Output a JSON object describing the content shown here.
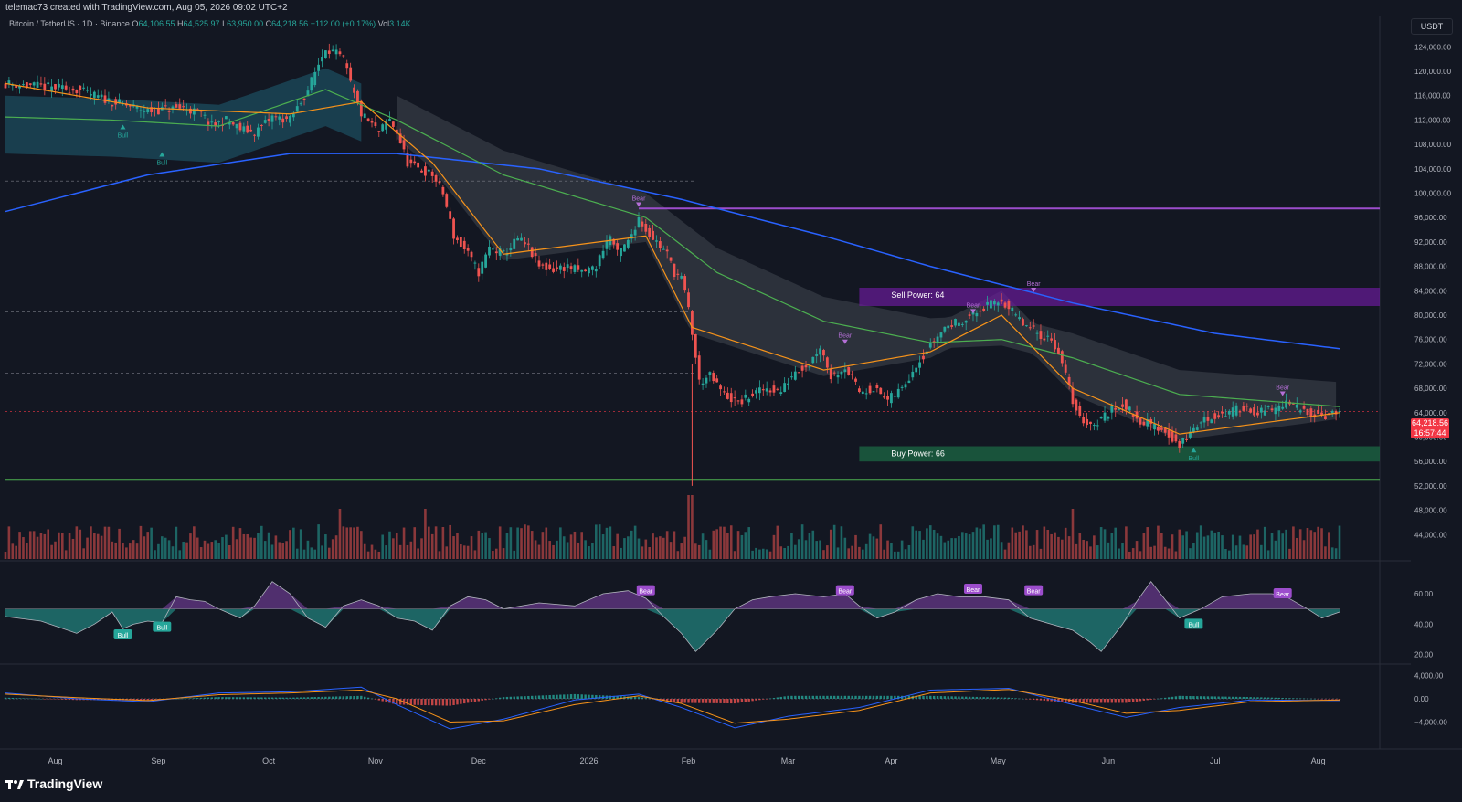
{
  "header": {
    "attribution": "telemac73 created with TradingView.com, Aug 05, 2026 09:02 UTC+2",
    "symbol": "Bitcoin / TetherUS · 1D · Binance",
    "open_label": "O",
    "open": "64,106.55",
    "high_label": "H",
    "high": "64,525.97",
    "low_label": "L",
    "low": "63,950.00",
    "close_label": "C",
    "close": "64,218.56",
    "change": "+112.00 (+0.17%)",
    "vol_label": "Vol",
    "volume": "3.14K"
  },
  "currency_button": "USDT",
  "price_tag": {
    "price": "64,218.56",
    "countdown": "16:57:44"
  },
  "branding": "TradingView",
  "colors": {
    "bg": "#131722",
    "bull": "#26a69a",
    "bear": "#ef5350",
    "ema_fast": "#f7931a",
    "ma_green": "#4caf50",
    "ma_blue": "#2962ff",
    "purple": "#9c27b0",
    "cloud": "#5d606b",
    "teal_cloud": "#1f5f73",
    "buy_zone": "#1b5e3f",
    "sell_zone": "#6a1b9a"
  },
  "chart_data": [
    {
      "type": "line",
      "name": "price_panel",
      "ylim": [
        40000,
        126000
      ],
      "y_ticks": [
        "124,000.00",
        "120,000.00",
        "116,000.00",
        "112,000.00",
        "108,000.00",
        "104,000.00",
        "100,000.00",
        "96,000.00",
        "92,000.00",
        "88,000.00",
        "84,000.00",
        "80,000.00",
        "76,000.00",
        "72,000.00",
        "68,000.00",
        "64,000.00",
        "60,000.00",
        "56,000.00",
        "52,000.00",
        "48,000.00",
        "44,000.00"
      ],
      "x_ticks": [
        "Aug",
        "Sep",
        "Oct",
        "Nov",
        "Dec",
        "2026",
        "Feb",
        "Mar",
        "Apr",
        "May",
        "Jun",
        "Jul",
        "Aug"
      ],
      "price_path": [
        [
          0,
          118000
        ],
        [
          10,
          117500
        ],
        [
          20,
          117000
        ],
        [
          30,
          115000
        ],
        [
          40,
          113500
        ],
        [
          50,
          114000
        ],
        [
          55,
          113000
        ],
        [
          58,
          111000
        ],
        [
          62,
          112000
        ],
        [
          66,
          110500
        ],
        [
          70,
          110000
        ],
        [
          75,
          112500
        ],
        [
          80,
          112000
        ],
        [
          85,
          117000
        ],
        [
          90,
          124000
        ],
        [
          95,
          122000
        ],
        [
          98,
          116000
        ],
        [
          100,
          113000
        ],
        [
          105,
          110000
        ],
        [
          108,
          112000
        ],
        [
          110,
          110000
        ],
        [
          113,
          105000
        ],
        [
          116,
          104000
        ],
        [
          120,
          103000
        ],
        [
          123,
          100000
        ],
        [
          126,
          93000
        ],
        [
          130,
          90000
        ],
        [
          133,
          87000
        ],
        [
          136,
          91000
        ],
        [
          140,
          90000
        ],
        [
          144,
          92500
        ],
        [
          147,
          91000
        ],
        [
          150,
          88000
        ],
        [
          154,
          87500
        ],
        [
          158,
          88000
        ],
        [
          162,
          87000
        ],
        [
          166,
          88000
        ],
        [
          168,
          91000
        ],
        [
          170,
          93000
        ],
        [
          172,
          90000
        ],
        [
          175,
          92000
        ],
        [
          178,
          96000
        ],
        [
          180,
          94000
        ],
        [
          183,
          92000
        ],
        [
          186,
          90000
        ],
        [
          188,
          87000
        ],
        [
          190,
          86000
        ],
        [
          192,
          81000
        ],
        [
          193,
          77000
        ],
        [
          195,
          69000
        ],
        [
          198,
          70000
        ],
        [
          202,
          67000
        ],
        [
          206,
          65500
        ],
        [
          210,
          67000
        ],
        [
          214,
          68000
        ],
        [
          218,
          67500
        ],
        [
          222,
          71000
        ],
        [
          226,
          72000
        ],
        [
          229,
          75000
        ],
        [
          232,
          70000
        ],
        [
          236,
          71500
        ],
        [
          240,
          67500
        ],
        [
          244,
          68000
        ],
        [
          248,
          66000
        ],
        [
          252,
          68000
        ],
        [
          256,
          72000
        ],
        [
          260,
          75000
        ],
        [
          264,
          78000
        ],
        [
          268,
          79000
        ],
        [
          272,
          80000
        ],
        [
          276,
          81500
        ],
        [
          280,
          82500
        ],
        [
          283,
          80500
        ],
        [
          286,
          78500
        ],
        [
          290,
          77000
        ],
        [
          294,
          76000
        ],
        [
          296,
          74000
        ],
        [
          298,
          70000
        ],
        [
          300,
          66000
        ],
        [
          302,
          63000
        ],
        [
          306,
          62000
        ],
        [
          310,
          64000
        ],
        [
          314,
          65500
        ],
        [
          318,
          63000
        ],
        [
          322,
          62000
        ],
        [
          326,
          61000
        ],
        [
          330,
          58500
        ],
        [
          332,
          60000
        ],
        [
          336,
          62500
        ],
        [
          340,
          63500
        ],
        [
          344,
          64000
        ],
        [
          348,
          65000
        ],
        [
          352,
          64000
        ],
        [
          356,
          64500
        ],
        [
          360,
          65500
        ],
        [
          364,
          64500
        ],
        [
          368,
          64000
        ],
        [
          372,
          63500
        ],
        [
          375,
          64218.56
        ]
      ],
      "ema_20_path": [
        [
          0,
          118000
        ],
        [
          40,
          114000
        ],
        [
          80,
          113000
        ],
        [
          100,
          115000
        ],
        [
          120,
          105000
        ],
        [
          140,
          90000
        ],
        [
          180,
          93000
        ],
        [
          193,
          78000
        ],
        [
          230,
          71000
        ],
        [
          260,
          74000
        ],
        [
          280,
          80000
        ],
        [
          300,
          68000
        ],
        [
          330,
          60500
        ],
        [
          375,
          64000
        ]
      ],
      "ma_50_path": [
        [
          0,
          112500
        ],
        [
          30,
          112000
        ],
        [
          60,
          111000
        ],
        [
          90,
          117000
        ],
        [
          110,
          112000
        ],
        [
          140,
          103000
        ],
        [
          180,
          96000
        ],
        [
          200,
          87000
        ],
        [
          230,
          79000
        ],
        [
          260,
          75500
        ],
        [
          280,
          76000
        ],
        [
          300,
          73000
        ],
        [
          330,
          67000
        ],
        [
          375,
          65000
        ]
      ],
      "ma_200_path": [
        [
          0,
          97000
        ],
        [
          40,
          103000
        ],
        [
          80,
          106500
        ],
        [
          110,
          106500
        ],
        [
          150,
          104000
        ],
        [
          190,
          99000
        ],
        [
          230,
          93000
        ],
        [
          260,
          88000
        ],
        [
          300,
          82000
        ],
        [
          340,
          77000
        ],
        [
          375,
          74500
        ]
      ],
      "resistance_line": 97500,
      "sell_zone": {
        "label": "Sell Power: 64",
        "top": 84500,
        "bottom": 81500
      },
      "buy_zone": {
        "label": "Buy Power: 66",
        "top": 58500,
        "bottom": 56000
      },
      "support_line": 53000,
      "dashed_levels": [
        102000,
        80500,
        70500
      ],
      "current_level": 64218.56,
      "annotations": [
        {
          "text": "Bull",
          "x": 33,
          "y": 110500
        },
        {
          "text": "Bull",
          "x": 44,
          "y": 106000
        },
        {
          "text": "Bear",
          "x": 178,
          "y": 98500
        },
        {
          "text": "Bear",
          "x": 236,
          "y": 76000
        },
        {
          "text": "Bear",
          "x": 272,
          "y": 81000
        },
        {
          "text": "Bear",
          "x": 289,
          "y": 84500
        },
        {
          "text": "Bear",
          "x": 359,
          "y": 67500
        },
        {
          "text": "Bull",
          "x": 334,
          "y": 57500
        }
      ]
    },
    {
      "type": "area",
      "name": "rsi_panel",
      "ylim": [
        15,
        75
      ],
      "y_ticks": [
        "60.00",
        "40.00",
        "20.00"
      ],
      "baseline": 50,
      "values": [
        [
          0,
          45
        ],
        [
          10,
          42
        ],
        [
          15,
          38
        ],
        [
          20,
          34
        ],
        [
          25,
          40
        ],
        [
          30,
          48
        ],
        [
          33,
          37
        ],
        [
          36,
          40
        ],
        [
          40,
          42
        ],
        [
          44,
          41
        ],
        [
          48,
          58
        ],
        [
          52,
          56
        ],
        [
          56,
          55
        ],
        [
          60,
          50
        ],
        [
          66,
          44
        ],
        [
          70,
          52
        ],
        [
          75,
          68
        ],
        [
          80,
          60
        ],
        [
          85,
          44
        ],
        [
          90,
          38
        ],
        [
          95,
          52
        ],
        [
          100,
          56
        ],
        [
          105,
          52
        ],
        [
          110,
          44
        ],
        [
          115,
          42
        ],
        [
          120,
          36
        ],
        [
          125,
          52
        ],
        [
          130,
          58
        ],
        [
          135,
          56
        ],
        [
          140,
          50
        ],
        [
          150,
          54
        ],
        [
          160,
          52
        ],
        [
          168,
          60
        ],
        [
          175,
          62
        ],
        [
          180,
          57
        ],
        [
          185,
          45
        ],
        [
          190,
          34
        ],
        [
          194,
          22
        ],
        [
          200,
          36
        ],
        [
          205,
          50
        ],
        [
          210,
          56
        ],
        [
          215,
          58
        ],
        [
          222,
          60
        ],
        [
          230,
          58
        ],
        [
          236,
          60
        ],
        [
          240,
          52
        ],
        [
          245,
          44
        ],
        [
          250,
          48
        ],
        [
          256,
          56
        ],
        [
          262,
          60
        ],
        [
          268,
          58
        ],
        [
          275,
          58
        ],
        [
          282,
          56
        ],
        [
          288,
          44
        ],
        [
          294,
          40
        ],
        [
          300,
          36
        ],
        [
          305,
          28
        ],
        [
          308,
          22
        ],
        [
          314,
          40
        ],
        [
          318,
          55
        ],
        [
          322,
          68
        ],
        [
          326,
          56
        ],
        [
          330,
          44
        ],
        [
          336,
          50
        ],
        [
          342,
          58
        ],
        [
          350,
          60
        ],
        [
          356,
          60
        ],
        [
          360,
          58
        ],
        [
          366,
          50
        ],
        [
          370,
          44
        ],
        [
          375,
          48
        ]
      ],
      "labels": [
        {
          "text": "Bull",
          "x": 33,
          "y": 33
        },
        {
          "text": "Bull",
          "x": 44,
          "y": 38
        },
        {
          "text": "Bear",
          "x": 180,
          "y": 62
        },
        {
          "text": "Bear",
          "x": 236,
          "y": 62
        },
        {
          "text": "Bear",
          "x": 272,
          "y": 63
        },
        {
          "text": "Bear",
          "x": 289,
          "y": 62
        },
        {
          "text": "Bull",
          "x": 334,
          "y": 40
        },
        {
          "text": "Bear",
          "x": 359,
          "y": 60
        }
      ]
    },
    {
      "type": "bar",
      "name": "macd_panel",
      "ylim": [
        -5500,
        5500
      ],
      "y_ticks": [
        "4,000.00",
        "0.00",
        "−4,000.00"
      ],
      "macd_path": [
        [
          0,
          1000
        ],
        [
          20,
          0
        ],
        [
          40,
          -500
        ],
        [
          60,
          1000
        ],
        [
          80,
          1200
        ],
        [
          100,
          2000
        ],
        [
          110,
          -1000
        ],
        [
          125,
          -5200
        ],
        [
          140,
          -3500
        ],
        [
          160,
          -200
        ],
        [
          178,
          800
        ],
        [
          190,
          -1500
        ],
        [
          205,
          -5000
        ],
        [
          220,
          -3000
        ],
        [
          240,
          -1500
        ],
        [
          260,
          1500
        ],
        [
          282,
          1800
        ],
        [
          300,
          -1000
        ],
        [
          315,
          -3200
        ],
        [
          330,
          -1500
        ],
        [
          350,
          -200
        ],
        [
          375,
          -300
        ]
      ],
      "signal_path": [
        [
          0,
          800
        ],
        [
          20,
          200
        ],
        [
          40,
          -300
        ],
        [
          60,
          700
        ],
        [
          80,
          1000
        ],
        [
          100,
          1500
        ],
        [
          110,
          0
        ],
        [
          125,
          -4000
        ],
        [
          140,
          -3800
        ],
        [
          160,
          -1000
        ],
        [
          178,
          500
        ],
        [
          190,
          -800
        ],
        [
          205,
          -4200
        ],
        [
          220,
          -3500
        ],
        [
          240,
          -2000
        ],
        [
          260,
          1000
        ],
        [
          282,
          1600
        ],
        [
          300,
          -300
        ],
        [
          315,
          -2500
        ],
        [
          330,
          -2000
        ],
        [
          350,
          -500
        ],
        [
          375,
          -200
        ]
      ]
    },
    {
      "type": "bar",
      "name": "volume_panel",
      "seed": 7
    }
  ]
}
